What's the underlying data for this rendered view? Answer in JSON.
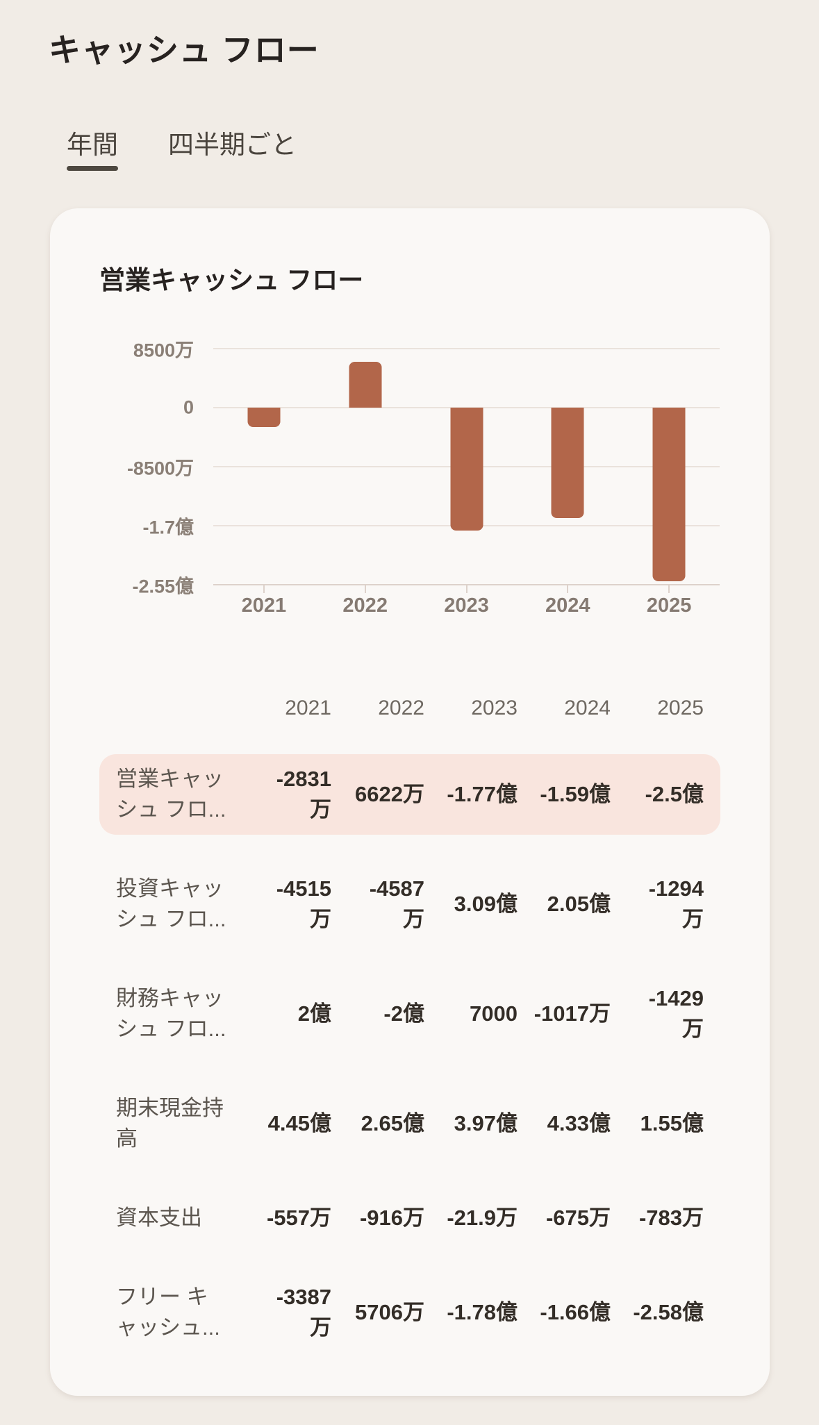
{
  "page": {
    "title": "キャッシュ フロー"
  },
  "tabs": [
    {
      "label": "年間",
      "active": true
    },
    {
      "label": "四半期ごと",
      "active": false
    }
  ],
  "card": {
    "title": "営業キャッシュ フロー"
  },
  "chart_data": {
    "type": "bar",
    "title": "営業キャッシュ フロー",
    "categories": [
      "2021",
      "2022",
      "2023",
      "2024",
      "2025"
    ],
    "values_man": [
      -2831,
      6622,
      -17700,
      -15900,
      -25000
    ],
    "values_display": [
      "-2831万",
      "6622万",
      "-1.77億",
      "-1.59億",
      "-2.5億"
    ],
    "unit_note": "values in 万 (10,000s)",
    "y_ticks": [
      {
        "label": "8500万",
        "value_man": 8500
      },
      {
        "label": "0",
        "value_man": 0
      },
      {
        "label": "-8500万",
        "value_man": -8500
      },
      {
        "label": "-1.7億",
        "value_man": -17000
      },
      {
        "label": "-2.55億",
        "value_man": -25500
      }
    ],
    "ylim_man": [
      -25500,
      8500
    ],
    "bar_color": "#b2664a",
    "grid": true,
    "legend": false
  },
  "table": {
    "years": [
      "2021",
      "2022",
      "2023",
      "2024",
      "2025"
    ],
    "rows": [
      {
        "label": "営業キャッ\nシュ フロ...",
        "highlight": true,
        "values": [
          "-2831\n万",
          "6622万",
          "-1.77億",
          "-1.59億",
          "-2.5億"
        ]
      },
      {
        "label": "投資キャッ\nシュ フロ...",
        "highlight": false,
        "values": [
          "-4515\n万",
          "-4587\n万",
          "3.09億",
          "2.05億",
          "-1294\n万"
        ]
      },
      {
        "label": "財務キャッ\nシュ フロ...",
        "highlight": false,
        "values": [
          "2億",
          "-2億",
          "7000",
          "-1017万",
          "-1429\n万"
        ]
      },
      {
        "label": "期末現金持\n高",
        "highlight": false,
        "values": [
          "4.45億",
          "2.65億",
          "3.97億",
          "4.33億",
          "1.55億"
        ]
      },
      {
        "label": "資本支出",
        "highlight": false,
        "values": [
          "-557万",
          "-916万",
          "-21.9万",
          "-675万",
          "-783万"
        ]
      },
      {
        "label": "フリー キ\nャッシュ...",
        "highlight": false,
        "values": [
          "-3387\n万",
          "5706万",
          "-1.78億",
          "-1.66億",
          "-2.58億"
        ]
      }
    ]
  },
  "colors": {
    "page_bg": "#f1ece6",
    "card_bg": "#faf8f6",
    "bar": "#b2664a",
    "gridline": "#eae2dc",
    "axis_text": "#8a7f76",
    "highlight_row_bg": "#f9e5de",
    "tab_underline": "#4e4840",
    "value_text": "#332d27",
    "label_text": "#5b554e"
  }
}
